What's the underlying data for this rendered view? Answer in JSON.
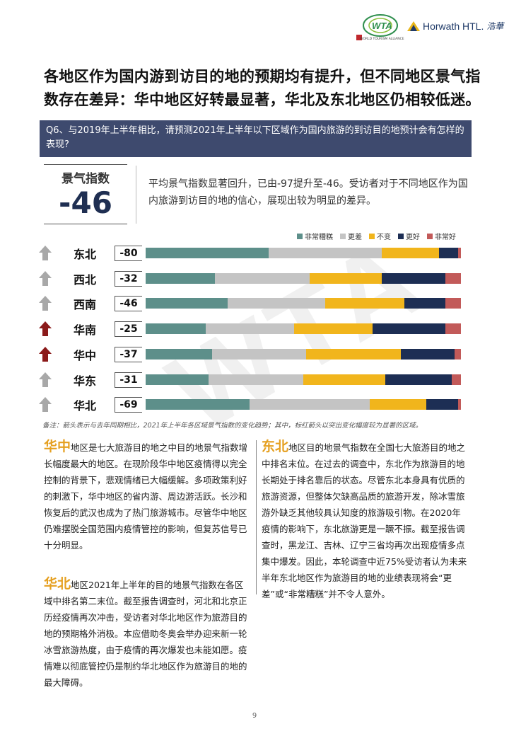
{
  "header": {
    "wta_logo_text": "WTA",
    "wta_subtitle": "WORLD TOURISM ALLIANCE",
    "horwath_text": "Horwath HTL.",
    "horwath_cn": "浩華"
  },
  "headline": "各地区作为国内游到访目的地的预期均有提升，但不同地区景气指数存在差异：华中地区好转最显著，华北及东北地区仍相较低迷。",
  "question": "Q6、与2019年上半年相比，请预测2021年上半年以下区域作为国内旅游的到访目的地预计会有怎样的表现?",
  "index": {
    "label": "景气指数",
    "value": "-46",
    "description": "平均景气指数显著回升，已由-97提升至-46。受访者对于不同地区作为国内旅游到访目的地的信心，展现出较为明显的差异。"
  },
  "watermark": "WTA",
  "colors": {
    "very_bad": "#5d8f8a",
    "worse": "#c4c4c4",
    "same": "#f1b51c",
    "better": "#1d2e54",
    "very_good": "#c25a59",
    "arrow_red": "#8b1a1a",
    "arrow_grey": "#a8a8a8",
    "question_bg": "#3e4a6e",
    "highlight": "#e5a021"
  },
  "chart_data": {
    "type": "bar",
    "stacked": true,
    "orientation": "horizontal",
    "legend_position": "top-right",
    "legend": [
      "非常糟糕",
      "更差",
      "不变",
      "更好",
      "非常好"
    ],
    "rows": [
      {
        "region": "东北",
        "score": "-80",
        "arrow": "grey",
        "values": [
          39,
          36,
          18,
          6,
          1
        ]
      },
      {
        "region": "西北",
        "score": "-32",
        "arrow": "grey",
        "values": [
          22,
          30,
          23,
          20,
          5
        ]
      },
      {
        "region": "西南",
        "score": "-46",
        "arrow": "grey",
        "values": [
          26,
          31,
          25,
          13,
          5
        ]
      },
      {
        "region": "华南",
        "score": "-25",
        "arrow": "red",
        "values": [
          19,
          28,
          25,
          23,
          5
        ]
      },
      {
        "region": "华中",
        "score": "-37",
        "arrow": "red",
        "values": [
          21,
          30,
          30,
          17,
          2
        ]
      },
      {
        "region": "华东",
        "score": "-31",
        "arrow": "grey",
        "values": [
          20,
          30,
          26,
          21,
          3
        ]
      },
      {
        "region": "华北",
        "score": "-69",
        "arrow": "grey",
        "values": [
          33,
          38,
          18,
          10,
          1
        ]
      }
    ],
    "note": "备注：箭头表示与去年同期相比，2021年上半年各区域景气指数的变化趋势；其中，标红箭头以突出变化幅度较为显著的区域。"
  },
  "columns": {
    "left_top": {
      "highlight": "华中",
      "text": "地区是七大旅游目的地之中目的地景气指数增长幅度最大的地区。在现阶段华中地区疫情得以完全控制的背景下，悲观情绪已大幅缓解。多项政策利好的刺激下，华中地区的省内游、周边游活跃。长沙和恢复后的武汉也成为了热门旅游城市。尽管华中地区仍难摆脱全国范围内疫情管控的影响，但复苏信号已十分明显。"
    },
    "left_bottom": {
      "highlight": "华北",
      "text": "地区2021年上半年的目的地景气指数在各区域中排名第二末位。截至报告调查时，河北和北京正历经疫情再次冲击，受访者对华北地区作为旅游目的地的预期格外消极。本应借助冬奥会举办迎来新一轮冰雪旅游热度，由于疫情的再次爆发也未能如愿。疫情难以彻底管控仍是制约华北地区作为旅游目的地的最大障碍。"
    },
    "right": {
      "highlight": "东北",
      "text": "地区目的地景气指数在全国七大旅游目的地之中排名末位。在过去的调查中，东北作为旅游目的地长期处于排名靠后的状态。尽管东北本身具有优质的旅游资源，但整体欠缺高品质的旅游开发，除冰雪旅游外缺乏其他较具认知度的旅游吸引物。在2020年疫情的影响下，东北旅游更是一蹶不振。截至报告调查时，黑龙江、吉林、辽宁三省均再次出现疫情多点集中爆发。因此，本轮调查中近75%受访者认为未来半年东北地区作为旅游目的地的业绩表现将会“更差”或“非常糟糕”并不令人意外。"
    }
  },
  "page_number": "9"
}
